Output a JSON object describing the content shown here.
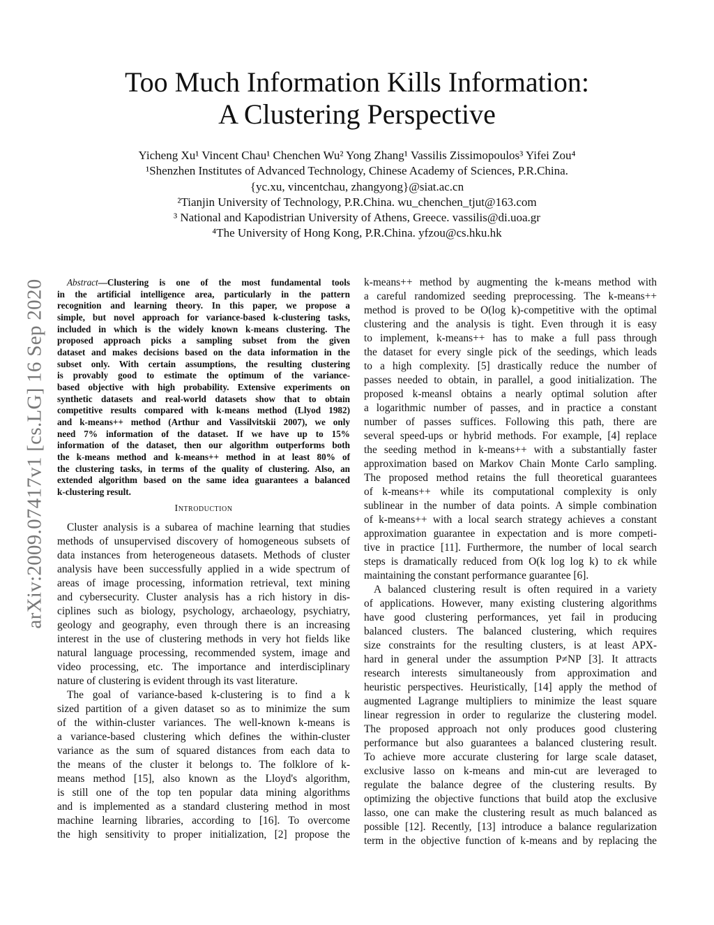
{
  "sidebar_stamp": "arXiv:2009.07417v1 [cs.LG] 16 Sep 2020",
  "title": [
    "Too Much Information Kills Information:",
    "A Clustering Perspective"
  ],
  "authors_line": "Yicheng Xu¹ Vincent Chau¹ Chenchen Wu² Yong Zhang¹ Vassilis Zissimopoulos³ Yifei Zou⁴",
  "affiliations": [
    "¹Shenzhen Institutes of Advanced Technology, Chinese Academy of Sciences, P.R.China.",
    "{yc.xu, vincentchau, zhangyong}@siat.ac.cn",
    "²Tianjin University of Technology, P.R.China. wu_chenchen_tjut@163.com",
    "³ National and Kapodistrian University of Athens, Greece. vassilis@di.uoa.gr",
    "⁴The University of Hong Kong, P.R.China. yfzou@cs.hku.hk"
  ],
  "abstract": {
    "lead": "Abstract",
    "lines": [
      "—Clustering is one of the most fundamental tools",
      "in the artificial intelligence area, particularly in the pattern",
      "recognition and learning theory. In this paper, we propose a",
      "simple, but novel approach for variance-based k-clustering tasks,",
      "included in which is the widely known k-means clustering. The",
      "proposed approach picks a sampling subset from the given",
      "dataset and makes decisions based on the data information in the",
      "subset only. With certain assumptions, the resulting clustering",
      "is provably good to estimate the optimum of the variance-",
      "based objective with high probability. Extensive experiments on",
      "synthetic datasets and real-world datasets show that to obtain",
      "competitive results compared with k-means method (Llyod 1982)",
      "and k-means++ method (Arthur and Vassilvitskii 2007), we only",
      "need 7% information of the dataset. If we have up to 15%",
      "information of the dataset, then our algorithm outperforms both",
      "the k-means method and k-means++ method in at least 80% of",
      "the clustering tasks, in terms of the quality of clustering. Also, an",
      "extended algorithm based on the same idea guarantees a balanced",
      "k-clustering result."
    ]
  },
  "section_heading": "Introduction",
  "left_paragraphs": [
    [
      "Cluster analysis is a subarea of machine learning that studies",
      "methods of unsupervised discovery of homogeneous subsets of",
      "data instances from heterogeneous datasets. Methods of cluster",
      "analysis have been successfully applied in a wide spectrum of",
      "areas of image processing, information retrieval, text mining",
      "and cybersecurity. Cluster analysis has a rich history in dis-",
      "ciplines such as biology, psychology, archaeology, psychiatry,",
      "geology and geography, even through there is an increasing",
      "interest in the use of clustering methods in very hot fields like",
      "natural language processing, recommended system, image and",
      "video processing, etc. The importance and interdisciplinary",
      "nature of clustering is evident through its vast literature."
    ],
    [
      "The goal of variance-based k-clustering is to find a k",
      "sized partition of a given dataset so as to minimize the sum",
      "of the within-cluster variances. The well-known k-means is",
      "a variance-based clustering which defines the within-cluster",
      "variance as the sum of squared distances from each data to",
      "the means of the cluster it belongs to. The folklore of k-",
      "means method [15], also known as the Lloyd's algorithm,",
      "is still one of the top ten popular data mining algorithms",
      "and is implemented as a standard clustering method in most",
      "machine learning libraries, according to [16]. To overcome",
      "the high sensitivity to proper initialization, [2] propose the"
    ]
  ],
  "right_paragraphs": [
    [
      "k-means++ method by augmenting the k-means method with",
      "a careful randomized seeding preprocessing. The k-means++",
      "method is proved to be O(log k)-competitive with the optimal",
      "clustering and the analysis is tight. Even through it is easy",
      "to implement, k-means++ has to make a full pass through",
      "the dataset for every single pick of the seedings, which leads",
      "to a high complexity. [5] drastically reduce the number of",
      "passes needed to obtain, in parallel, a good initialization. The",
      "proposed k-means‖ obtains a nearly optimal solution after",
      "a logarithmic number of passes, and in practice a constant",
      "number of passes suffices. Following this path, there are",
      "several speed-ups or hybrid methods. For example, [4] replace",
      "the seeding method in k-means++ with a substantially faster",
      "approximation based on Markov Chain Monte Carlo sampling.",
      "The proposed method retains the full theoretical guarantees",
      "of k-means++ while its computational complexity is only",
      "sublinear in the number of data points. A simple combination",
      "of k-means++ with a local search strategy achieves a constant",
      "approximation guarantee in expectation and is more competi-",
      "tive in practice [11]. Furthermore, the number of local search",
      "steps is dramatically reduced from O(k log log k) to εk while",
      "maintaining the constant performance guarantee [6]."
    ],
    [
      "A balanced clustering result is often required in a variety",
      "of applications. However, many existing clustering algorithms",
      "have good clustering performances, yet fail in producing",
      "balanced clusters. The balanced clustering, which requires",
      "size constraints for the resulting clusters, is at least APX-",
      "hard in general under the assumption P≠NP [3]. It attracts",
      "research interests simultaneously from approximation and",
      "heuristic perspectives. Heuristically, [14] apply the method of",
      "augmented Lagrange multipliers to minimize the least square",
      "linear regression in order to regularize the clustering model.",
      "The proposed approach not only produces good clustering",
      "performance but also guarantees a balanced clustering result.",
      "To achieve more accurate clustering for large scale dataset,",
      "exclusive lasso on k-means and min-cut are leveraged to",
      "regulate the balance degree of the clustering results. By",
      "optimizing the objective functions that build atop the exclusive",
      "lasso, one can make the clustering result as much balanced as",
      "possible [12]. Recently, [13] introduce a balance regularization",
      "term in the objective function of k-means and by replacing the"
    ]
  ]
}
